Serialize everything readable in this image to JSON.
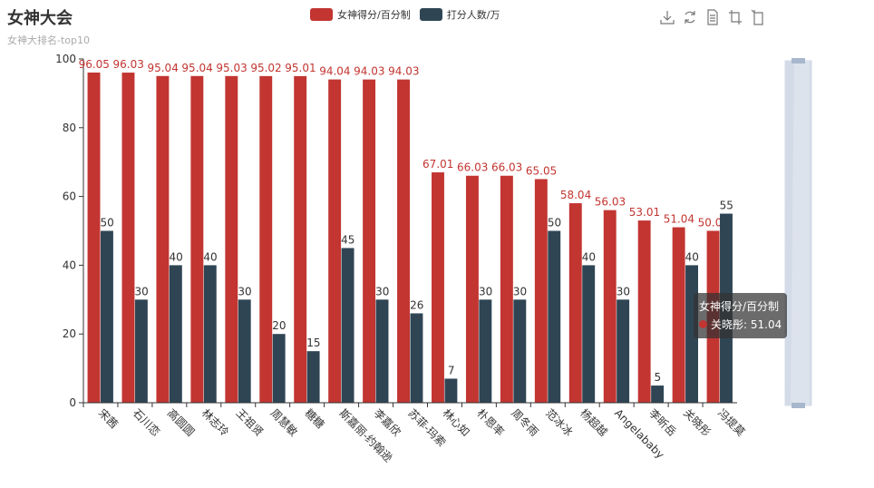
{
  "title": "女神大会",
  "subtitle": "女神大排名-top10",
  "legend": [
    {
      "name": "女神得分/百分制",
      "color": "#c23531"
    },
    {
      "name": "打分人数/万",
      "color": "#2f4554"
    }
  ],
  "toolbox": [
    "download-icon",
    "refresh-icon",
    "data-view-icon",
    "zoom-icon",
    "zoom-reset-icon"
  ],
  "tooltip": {
    "series": "女神得分/百分制",
    "label": "关晓彤: 51.04",
    "color": "#c23531"
  },
  "chart_data": {
    "type": "bar",
    "categories": [
      "宋茜",
      "石川恋",
      "高圆圆",
      "林志玲",
      "王祖贤",
      "周慧敏",
      "糖糖",
      "斯嘉丽-约翰逊",
      "李嘉欣",
      "苏菲-玛索",
      "林心如",
      "朴恩率",
      "周冬雨",
      "范冰冰",
      "杨超越",
      "Angelababy",
      "李昕岳",
      "关晓彤",
      "冯提莫"
    ],
    "series": [
      {
        "name": "女神得分/百分制",
        "color": "#c23531",
        "values": [
          96.05,
          96.03,
          95.04,
          95.04,
          95.03,
          95.02,
          95.01,
          94.04,
          94.03,
          94.03,
          67.01,
          66.03,
          66.03,
          65.05,
          58.04,
          56.03,
          53.01,
          51.04,
          50.01
        ]
      },
      {
        "name": "打分人数/万",
        "color": "#2f4554",
        "values": [
          50,
          30,
          40,
          40,
          30,
          20,
          15,
          45,
          30,
          26,
          7,
          30,
          30,
          50,
          40,
          30,
          5,
          40,
          55
        ]
      }
    ],
    "ylim": [
      0,
      100
    ],
    "yticks": [
      0,
      20,
      40,
      60,
      80,
      100
    ],
    "grid": false,
    "legend_position": "top",
    "xlabel": "",
    "ylabel": ""
  }
}
